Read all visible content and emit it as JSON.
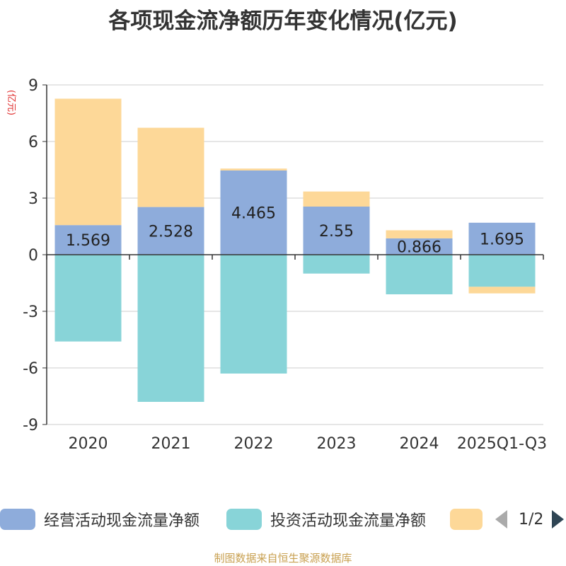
{
  "chart_data": {
    "type": "bar",
    "title": "各项现金流净额历年变化情况(亿元)",
    "unit_label": "(亿元)",
    "categories": [
      "2020",
      "2021",
      "2022",
      "2023",
      "2024",
      "2025Q1-Q3"
    ],
    "series": [
      {
        "name": "经营活动现金流量净额",
        "values": [
          1.569,
          2.528,
          4.465,
          2.55,
          0.866,
          1.695
        ],
        "color": "#8eacdb"
      },
      {
        "name": "投资活动现金流量净额",
        "values": [
          -4.6,
          -7.8,
          -6.3,
          -1.0,
          -2.1,
          -1.7
        ],
        "color": "#88d4d8"
      },
      {
        "name": "",
        "values": [
          6.7,
          4.2,
          0.1,
          0.8,
          0.43,
          -0.35
        ],
        "color": "#fdd898"
      }
    ],
    "data_labels": [
      "1.569",
      "2.528",
      "4.465",
      "2.55",
      "0.866",
      "1.695"
    ],
    "y_ticks": [
      "9",
      "6",
      "3",
      "0",
      "-3",
      "-6",
      "-9"
    ],
    "ylim": [
      -9,
      9
    ],
    "stacked": true,
    "grid": true,
    "legend_position": "bottom"
  },
  "legend": {
    "items": [
      "经营活动现金流量净额",
      "投资活动现金流量净额",
      ""
    ],
    "page_text": "1/2"
  },
  "source_note": "制图数据来自恒生聚源数据库"
}
